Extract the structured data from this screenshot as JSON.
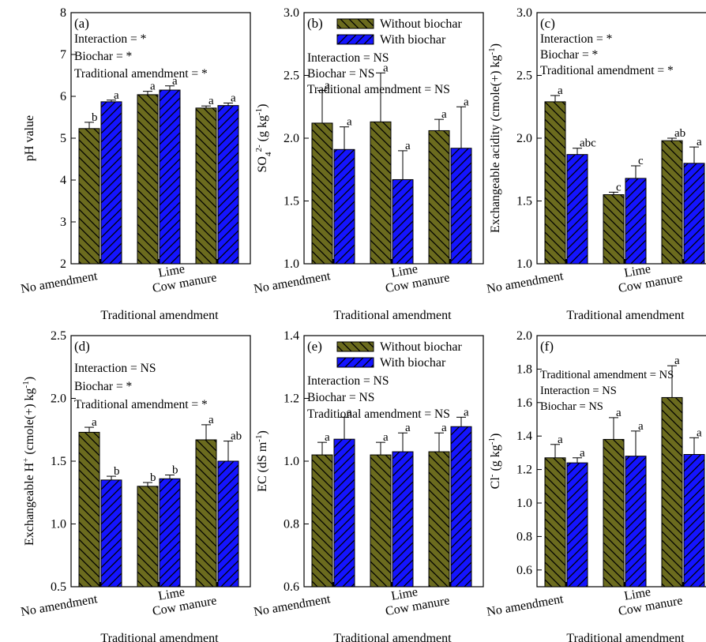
{
  "colors": {
    "without_biochar": "#6b6b1e",
    "with_biochar": "#1414ff",
    "hatch": "#000000"
  },
  "chart_data": [
    {
      "type": "bar",
      "panel_label": "(a)",
      "categories": [
        "No amendment",
        "Lime",
        "Cow manure"
      ],
      "series": [
        {
          "name": "",
          "values": [
            5.23,
            6.04,
            5.72
          ],
          "errors": [
            0.15,
            0.08,
            0.05
          ],
          "letters": [
            "b",
            "a",
            "a"
          ]
        },
        {
          "name": "",
          "values": [
            5.87,
            6.15,
            5.78
          ],
          "errors": [
            0.04,
            0.1,
            0.06
          ],
          "letters": [
            "a",
            "a",
            "a"
          ]
        }
      ],
      "xlabel": "Traditional amendment",
      "ylabel": "pH value",
      "ylim": [
        2,
        8
      ],
      "yticks": [
        "2",
        "3",
        "4",
        "5",
        "6",
        "7",
        "8"
      ],
      "stats": [
        "Interaction = *",
        "Biochar = *",
        "Traditional amendment = *"
      ],
      "grid": false
    },
    {
      "type": "bar",
      "panel_label": "(b)",
      "categories": [
        "No amendment",
        "Lime",
        "Cow manure"
      ],
      "series": [
        {
          "name": "Without biochar",
          "values": [
            2.12,
            2.13,
            2.06
          ],
          "errors": [
            0.26,
            0.39,
            0.09
          ],
          "letters": [
            "a",
            "a",
            "a"
          ]
        },
        {
          "name": "With biochar",
          "values": [
            1.91,
            1.67,
            1.92
          ],
          "errors": [
            0.18,
            0.23,
            0.33
          ],
          "letters": [
            "a",
            "a",
            "a"
          ]
        }
      ],
      "xlabel": "Traditional amendment",
      "ylabel": "SO4 2- (g kg-1)",
      "ylabel_parts": {
        "a": "SO",
        "sub": "4",
        "sup": "2-",
        "b": " (g kg",
        "sup2": "-1",
        "c": ")"
      },
      "ylim": [
        1.0,
        3.0
      ],
      "yticks": [
        "1.0",
        "1.5",
        "2.0",
        "2.5",
        "3.0"
      ],
      "stats": [
        "Interaction = NS",
        "Biochar = NS",
        "Traditional amendment = NS"
      ],
      "legend": "top-right",
      "grid": false
    },
    {
      "type": "bar",
      "panel_label": "(c)",
      "categories": [
        "No amendment",
        "Lime",
        "Cow manure"
      ],
      "series": [
        {
          "name": "",
          "values": [
            2.29,
            1.55,
            1.98
          ],
          "errors": [
            0.05,
            0.02,
            0.02
          ],
          "letters": [
            "a",
            "c",
            "ab"
          ]
        },
        {
          "name": "",
          "values": [
            1.87,
            1.68,
            1.8
          ],
          "errors": [
            0.05,
            0.1,
            0.13
          ],
          "letters": [
            "abc",
            "c",
            "a"
          ]
        }
      ],
      "xlabel": "Traditional amendment",
      "ylabel": "Exchangeable acidity (cmole(+) kg-1)",
      "ylabel_parts": {
        "a": "Exchangeable acidity (cmole(+) kg",
        "sup": "-1",
        "b": ")"
      },
      "ylim": [
        1.0,
        3.0
      ],
      "yticks": [
        "1.0",
        "1.5",
        "2.0",
        "2.5",
        "3.0"
      ],
      "stats": [
        "Interaction = *",
        "Biochar = *",
        "Traditional amendment = *"
      ],
      "grid": false
    },
    {
      "type": "bar",
      "panel_label": "(d)",
      "categories": [
        "No amendment",
        "Lime",
        "Cow manure"
      ],
      "series": [
        {
          "name": "",
          "values": [
            1.73,
            1.3,
            1.67
          ],
          "errors": [
            0.04,
            0.03,
            0.12
          ],
          "letters": [
            "a",
            "b",
            "a"
          ]
        },
        {
          "name": "",
          "values": [
            1.35,
            1.36,
            1.5
          ],
          "errors": [
            0.03,
            0.03,
            0.16
          ],
          "letters": [
            "b",
            "b",
            "ab"
          ]
        }
      ],
      "xlabel": "Traditional amendment",
      "ylabel": "Exchangeable H+ (cmole(+) kg-1)",
      "ylabel_parts": {
        "a": "Exchangeable H",
        "sup": "+",
        "b": " (cmole(+) kg",
        "sup2": "-1",
        "c": ")"
      },
      "ylim": [
        0.5,
        2.5
      ],
      "yticks": [
        "0.5",
        "1.0",
        "1.5",
        "2.0",
        "2.5"
      ],
      "stats": [
        "Interaction = NS",
        "Biochar = *",
        "Traditional amendment = *"
      ],
      "grid": false
    },
    {
      "type": "bar",
      "panel_label": "(e)",
      "categories": [
        "No amendment",
        "Lime",
        "Cow manure"
      ],
      "series": [
        {
          "name": "Without biochar",
          "values": [
            1.02,
            1.02,
            1.03
          ],
          "errors": [
            0.04,
            0.04,
            0.06
          ],
          "letters": [
            "a",
            "a",
            "a"
          ]
        },
        {
          "name": "With biochar",
          "values": [
            1.07,
            1.03,
            1.11
          ],
          "errors": [
            0.07,
            0.06,
            0.03
          ],
          "letters": [
            "a",
            "a",
            "a"
          ]
        }
      ],
      "xlabel": "Traditional amendment",
      "ylabel": "EC (dS m-1)",
      "ylabel_parts": {
        "a": "EC (dS m",
        "sup": "-1",
        "b": ")"
      },
      "ylim": [
        0.6,
        1.4
      ],
      "yticks": [
        "0.6",
        "0.8",
        "1.0",
        "1.2",
        "1.4"
      ],
      "stats": [
        "Interaction = NS",
        "Biochar = NS",
        "Traditional amendment = NS"
      ],
      "legend": "top-right",
      "grid": false
    },
    {
      "type": "bar",
      "panel_label": "(f)",
      "categories": [
        "No amendment",
        "Lime",
        "Cow manure"
      ],
      "series": [
        {
          "name": "",
          "values": [
            1.27,
            1.38,
            1.63
          ],
          "errors": [
            0.08,
            0.13,
            0.19
          ],
          "letters": [
            "a",
            "a",
            "a"
          ]
        },
        {
          "name": "",
          "values": [
            1.24,
            1.28,
            1.29
          ],
          "errors": [
            0.03,
            0.15,
            0.1
          ],
          "letters": [
            "a",
            "a",
            "a"
          ]
        }
      ],
      "xlabel": "Traditional amendment",
      "ylabel": "Cl- (g kg-1)",
      "ylabel_parts": {
        "a": "Cl",
        "sup": "-",
        "b": " (g kg",
        "sup2": "-1",
        "c": ")"
      },
      "ylim": [
        0.5,
        2.0
      ],
      "yticks": [
        "0.6",
        "0.8",
        "1.0",
        "1.2",
        "1.4",
        "1.6",
        "1.8",
        "2.0"
      ],
      "stats": [
        "Traditional amendment = NS",
        "Interaction = NS",
        "Biochar = NS"
      ],
      "grid": false
    }
  ]
}
